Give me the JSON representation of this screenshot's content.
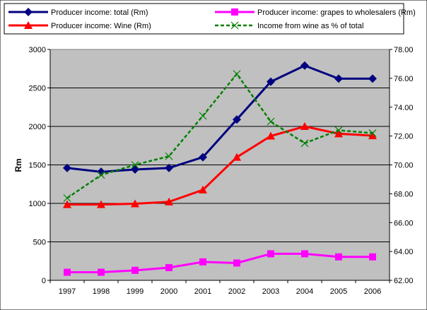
{
  "chart_data": {
    "type": "line",
    "x": [
      "1997",
      "1998",
      "1999",
      "2000",
      "2001",
      "2002",
      "2003",
      "2004",
      "2005",
      "2006"
    ],
    "ylabel": "Rm",
    "ylim": [
      0,
      3000
    ],
    "yticks": [
      "0",
      "500",
      "1000",
      "1500",
      "2000",
      "2500",
      "3000"
    ],
    "y2lim": [
      62,
      78
    ],
    "y2ticks": [
      "62.00",
      "64.00",
      "66.00",
      "68.00",
      "70.00",
      "72.00",
      "74.00",
      "76.00",
      "78.00"
    ],
    "grid": "horizontal",
    "legend": "top",
    "series": [
      {
        "name": "Producer income: total (Rm)",
        "axis": "left",
        "color": "#000080",
        "marker": "diamond",
        "style": "solid",
        "values": [
          1460,
          1410,
          1440,
          1460,
          1600,
          2090,
          2580,
          2790,
          2620,
          2620
        ]
      },
      {
        "name": "Producer income: grapes to wholesalers (Rm)",
        "axis": "left",
        "color": "#ff00ff",
        "marker": "square",
        "style": "solid",
        "values": [
          105,
          105,
          130,
          165,
          240,
          225,
          345,
          345,
          305,
          305
        ]
      },
      {
        "name": "Producer income: Wine (Rm)",
        "axis": "left",
        "color": "#ff0000",
        "marker": "triangle",
        "style": "solid",
        "values": [
          985,
          985,
          995,
          1020,
          1175,
          1600,
          1875,
          2000,
          1905,
          1880
        ]
      },
      {
        "name": "Income from wine as % of total",
        "axis": "right",
        "color": "#008000",
        "marker": "x",
        "style": "dashed",
        "values": [
          67.7,
          69.3,
          70.0,
          70.6,
          73.4,
          76.3,
          73.0,
          71.5,
          72.4,
          72.2
        ]
      }
    ]
  }
}
